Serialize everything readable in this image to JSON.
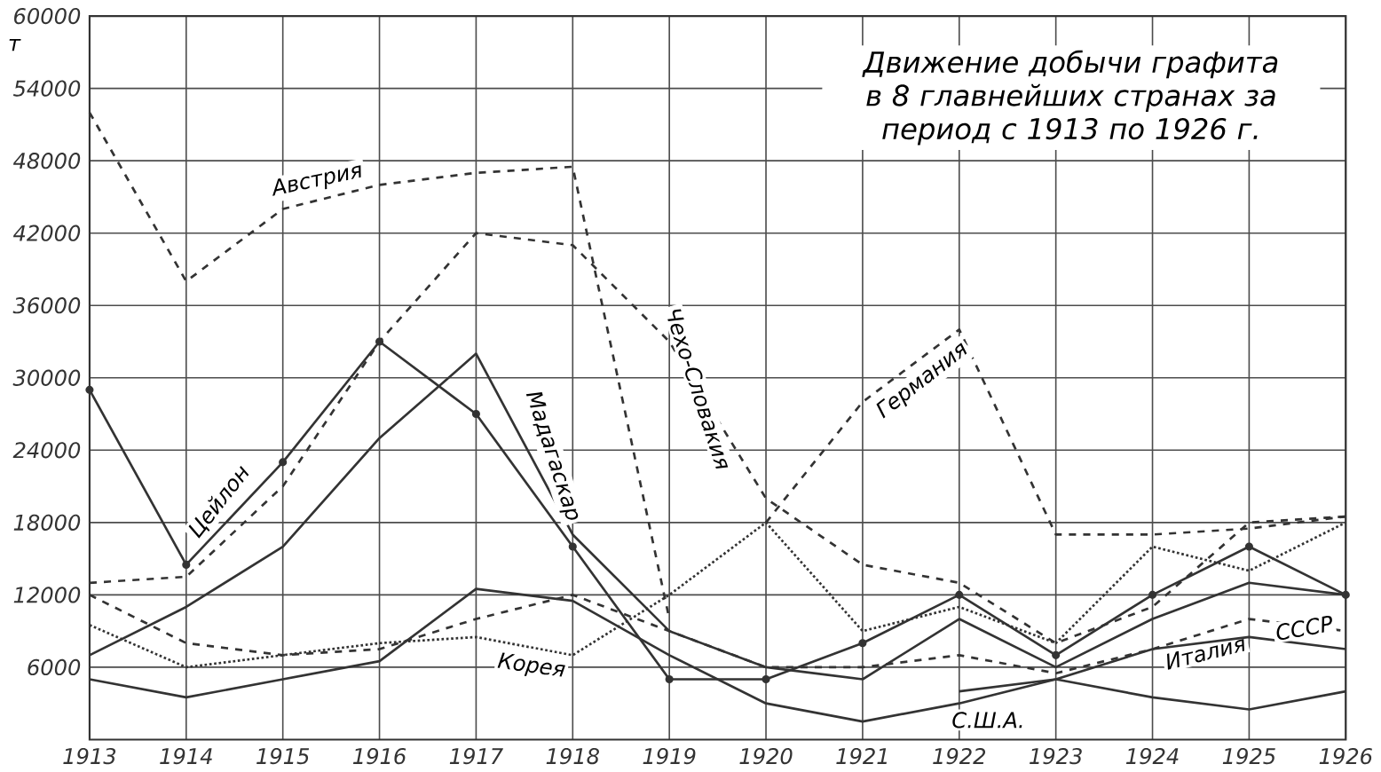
{
  "chart_data": {
    "type": "line",
    "title": "Движение добычи графита в 8 главнейших странах за период с 1913 по 1926 г.",
    "ylabel": "т",
    "x": [
      1913,
      1914,
      1915,
      1916,
      1917,
      1918,
      1919,
      1920,
      1921,
      1922,
      1923,
      1924,
      1925,
      1926
    ],
    "xlim": [
      1913,
      1926
    ],
    "xticks": [
      1913,
      1914,
      1915,
      1916,
      1917,
      1918,
      1919,
      1920,
      1921,
      1922,
      1923,
      1924,
      1925,
      1926
    ],
    "ylim": [
      0,
      60000
    ],
    "yticks": [
      6000,
      12000,
      18000,
      24000,
      30000,
      36000,
      42000,
      48000,
      54000,
      60000
    ],
    "grid": true,
    "series": [
      {
        "name": "Австрия",
        "color": "#333333",
        "line_style": "dashed",
        "values": [
          52000,
          38000,
          44000,
          46000,
          47000,
          47500,
          10000,
          null,
          null,
          null,
          null,
          null,
          null,
          null
        ]
      },
      {
        "name": "Чехо-Словакия",
        "color": "#333333",
        "line_style": "dashed",
        "values": [
          13000,
          13500,
          21000,
          33000,
          42000,
          41000,
          33000,
          20000,
          14500,
          13000,
          8000,
          11000,
          18000,
          18500
        ]
      },
      {
        "name": "Германия",
        "color": "#333333",
        "line_style": "dashed",
        "values": [
          null,
          null,
          null,
          null,
          null,
          null,
          null,
          18000,
          28000,
          34000,
          17000,
          17000,
          17500,
          18500
        ]
      },
      {
        "name": "Цейлон",
        "color": "#333333",
        "line_style": "solid",
        "marker": "circle",
        "values": [
          29000,
          14500,
          23000,
          33000,
          27000,
          16000,
          5000,
          5000,
          8000,
          12000,
          7000,
          12000,
          16000,
          12000
        ]
      },
      {
        "name": "Мадагаскар",
        "color": "#333333",
        "line_style": "solid",
        "values": [
          7000,
          11000,
          16000,
          25000,
          32000,
          17000,
          9000,
          6000,
          5000,
          10000,
          6000,
          10000,
          13000,
          12000
        ]
      },
      {
        "name": "Корея",
        "color": "#333333",
        "line_style": "dotted",
        "values": [
          9500,
          6000,
          7000,
          8000,
          8500,
          7000,
          12000,
          18000,
          9000,
          11000,
          8000,
          16000,
          14000,
          18000
        ]
      },
      {
        "name": "Италия",
        "color": "#333333",
        "line_style": "dashed",
        "values": [
          12000,
          8000,
          7000,
          7500,
          10000,
          12000,
          9000,
          6000,
          6000,
          7000,
          5500,
          7500,
          10000,
          9000
        ]
      },
      {
        "name": "С.Ш.А.",
        "color": "#333333",
        "line_style": "solid",
        "values": [
          5000,
          3500,
          5000,
          6500,
          12500,
          11500,
          7000,
          3000,
          1500,
          3000,
          5000,
          3500,
          2500,
          4000
        ]
      },
      {
        "name": "СССР",
        "color": "#333333",
        "line_style": "solid",
        "values": [
          null,
          null,
          null,
          null,
          null,
          null,
          null,
          null,
          null,
          4000,
          5000,
          7500,
          8500,
          7500
        ]
      }
    ]
  }
}
